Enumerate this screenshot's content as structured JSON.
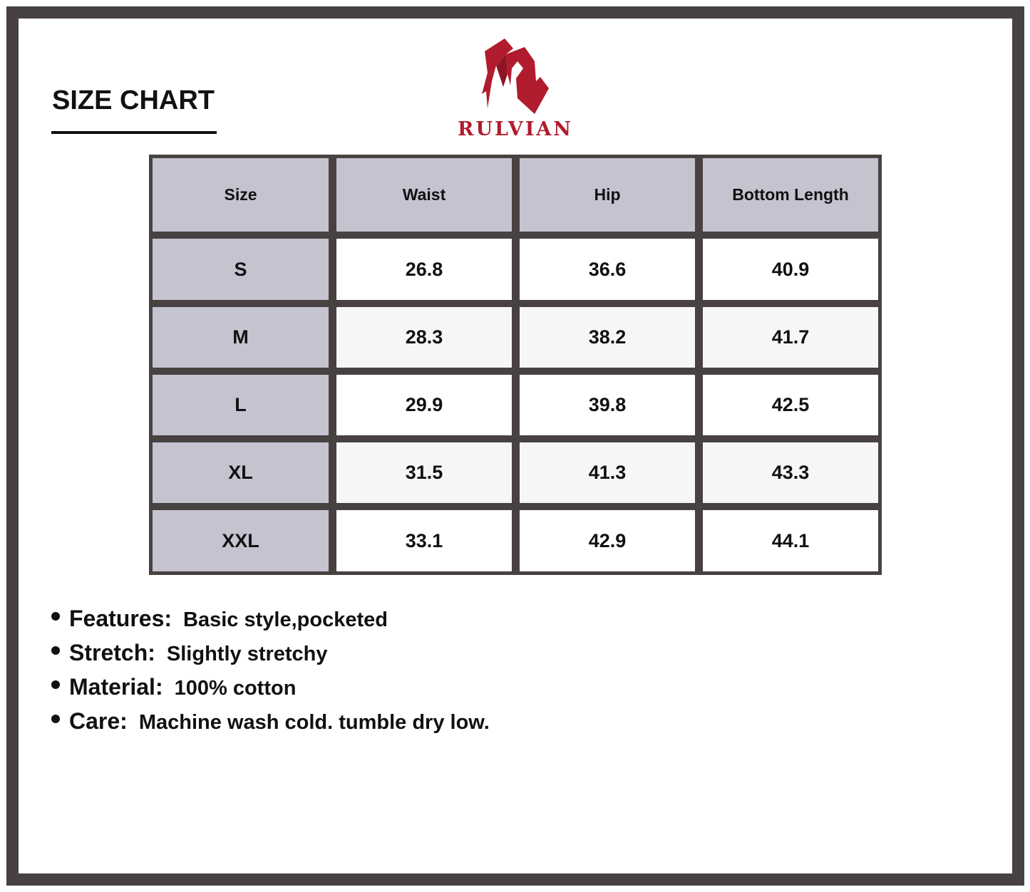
{
  "title": "SIZE CHART",
  "brand": {
    "name": "RULVIAN",
    "color": "#b01c2e"
  },
  "table": {
    "headers": [
      "Size",
      "Waist",
      "Hip",
      "Bottom Length"
    ],
    "rows": [
      [
        "S",
        "26.8",
        "36.6",
        "40.9"
      ],
      [
        "M",
        "28.3",
        "38.2",
        "41.7"
      ],
      [
        "L",
        "29.9",
        "39.8",
        "42.5"
      ],
      [
        "XL",
        "31.5",
        "41.3",
        "43.3"
      ],
      [
        "XXL",
        "33.1",
        "42.9",
        "44.1"
      ]
    ]
  },
  "features": [
    {
      "label": "Features:",
      "value": "Basic style,pocketed"
    },
    {
      "label": "Stretch:",
      "value": "Slightly stretchy"
    },
    {
      "label": "Material:",
      "value": "100% cotton"
    },
    {
      "label": "Care:",
      "value": "Machine wash cold. tumble dry low."
    }
  ]
}
